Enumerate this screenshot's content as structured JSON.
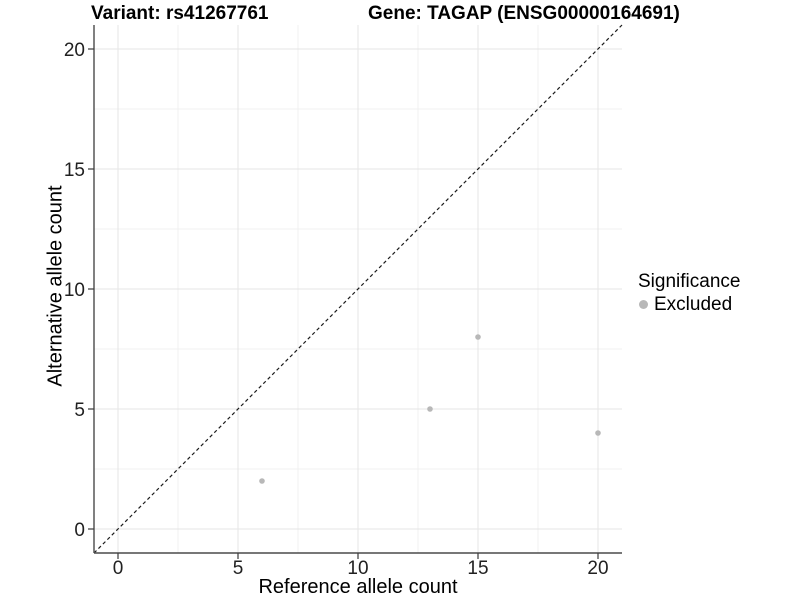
{
  "chart_data": {
    "type": "scatter",
    "title_variant": "Variant: rs41267761",
    "title_gene": "Gene: TAGAP (ENSG00000164691)",
    "xlabel": "Reference allele count",
    "ylabel": "Alternative allele count",
    "xlim": [
      -1,
      21
    ],
    "ylim": [
      -1,
      21
    ],
    "x_ticks": [
      0,
      5,
      10,
      15,
      20
    ],
    "y_ticks": [
      0,
      5,
      10,
      15,
      20
    ],
    "x_minor_ticks": [
      2.5,
      7.5,
      12.5,
      17.5
    ],
    "y_minor_ticks": [
      2.5,
      7.5,
      12.5,
      17.5
    ],
    "grid": "major+minor",
    "identity_line": {
      "style": "dashed",
      "slope": 1,
      "intercept": 0
    },
    "series": [
      {
        "name": "Excluded",
        "color": "#b8b8b8",
        "points": [
          [
            6,
            2
          ],
          [
            13,
            5
          ],
          [
            15,
            8
          ],
          [
            20,
            4
          ]
        ]
      }
    ],
    "legend": {
      "title": "Significance",
      "position": "right",
      "items": [
        {
          "label": "Excluded",
          "color": "#b8b8b8"
        }
      ]
    }
  }
}
